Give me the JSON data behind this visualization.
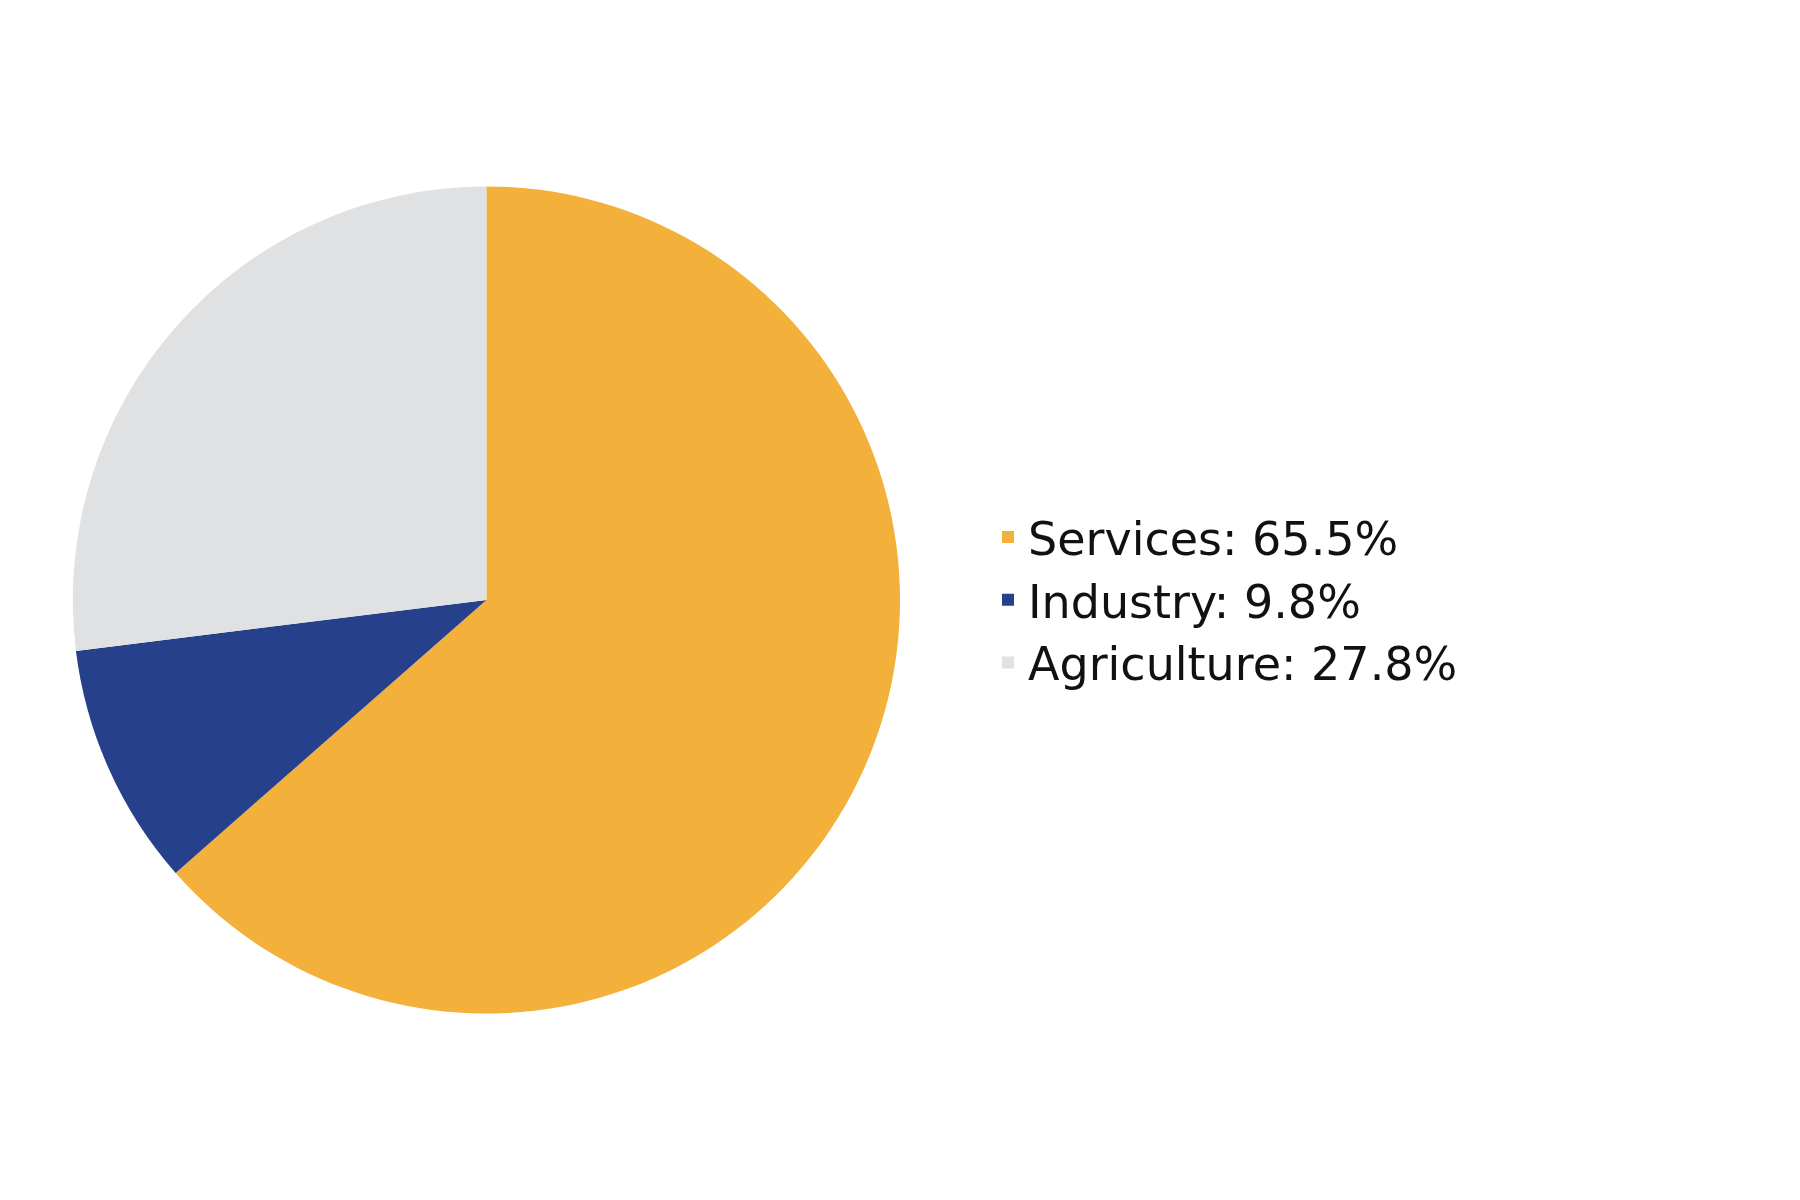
{
  "chart_data": {
    "type": "pie",
    "categories": [
      "Services: 65.5%",
      "Industry: 9.8%",
      "Agriculture: 27.8%"
    ],
    "values": [
      65.5,
      9.8,
      27.8
    ],
    "colors": [
      "#f3b03a",
      "#26408c",
      "#e0e1e3"
    ],
    "legend": "right"
  }
}
